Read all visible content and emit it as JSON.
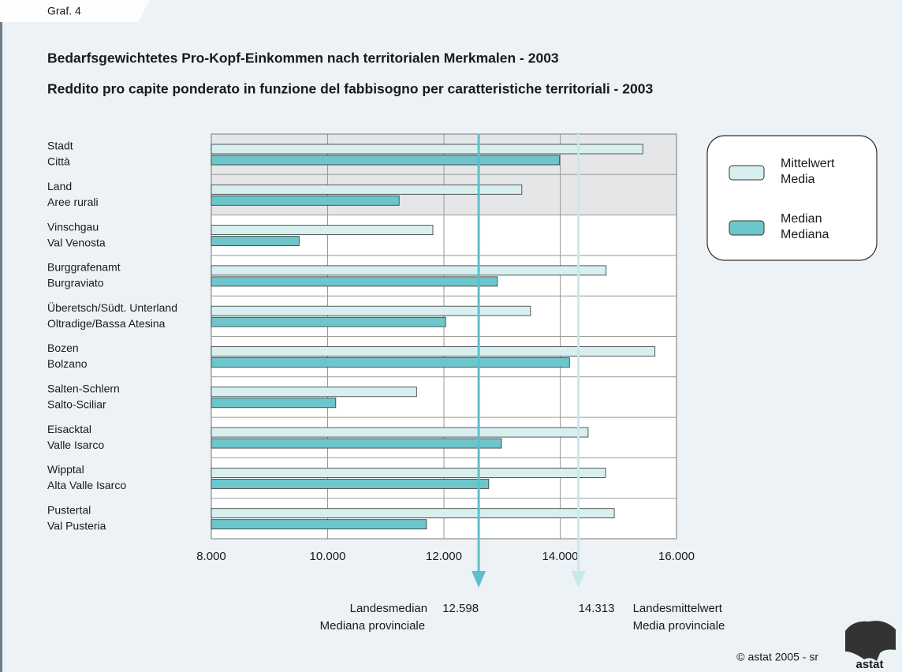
{
  "chart_data": {
    "type": "hbar",
    "label": "Graf. 4",
    "title": "Bedarfsgewichtetes Pro-Kopf-Einkommen nach territorialen Merkmalen - 2003",
    "subtitle": "Reddito pro capite ponderato in funzione del fabbisogno per caratteristiche territoriali - 2003",
    "categories": [
      [
        "Stadt",
        "Città"
      ],
      [
        "Land",
        "Aree rurali"
      ],
      [
        "Vinschgau",
        "Val Venosta"
      ],
      [
        "Burggrafenamt",
        "Burgraviato"
      ],
      [
        "Überetsch/Südt. Unterland",
        "Oltradige/Bassa Atesina"
      ],
      [
        "Bozen",
        "Bolzano"
      ],
      [
        "Salten-Schlern",
        "Salto-Sciliar"
      ],
      [
        "Eisacktal",
        "Valle Isarco"
      ],
      [
        "Wipptal",
        "Alta Valle Isarco"
      ],
      [
        "Pustertal",
        "Val Pusteria"
      ]
    ],
    "series": [
      {
        "name": [
          "Mittelwert",
          "Media"
        ],
        "color": "#d8eff0",
        "values": [
          15420,
          13340,
          11810,
          14790,
          13490,
          15630,
          11530,
          14480,
          14780,
          14930
        ]
      },
      {
        "name": [
          "Median",
          "Mediana"
        ],
        "color": "#6cc6cb",
        "values": [
          13990,
          11230,
          9510,
          12920,
          12030,
          14160,
          10140,
          12990,
          12770,
          11700
        ]
      }
    ],
    "xlim": [
      8000,
      16000
    ],
    "xticks": [
      {
        "value": 8000,
        "label": "8.000"
      },
      {
        "value": 10000,
        "label": "10.000"
      },
      {
        "value": 12000,
        "label": "12.000"
      },
      {
        "value": 14000,
        "label": "14.000"
      },
      {
        "value": 16000,
        "label": "16.000"
      }
    ],
    "grid": true,
    "reference_lines": [
      {
        "value": 12598,
        "label": "12.598",
        "text": [
          "Landesmedian",
          "Mediana provinciale"
        ],
        "color": "#5ec0c8",
        "side": "left"
      },
      {
        "value": 14313,
        "label": "14.313",
        "text": [
          "Landesmittelwert",
          "Media provinciale"
        ],
        "color": "#c6eaec",
        "side": "right"
      }
    ],
    "source": "© astat 2005 - sr",
    "logo": "astat"
  }
}
